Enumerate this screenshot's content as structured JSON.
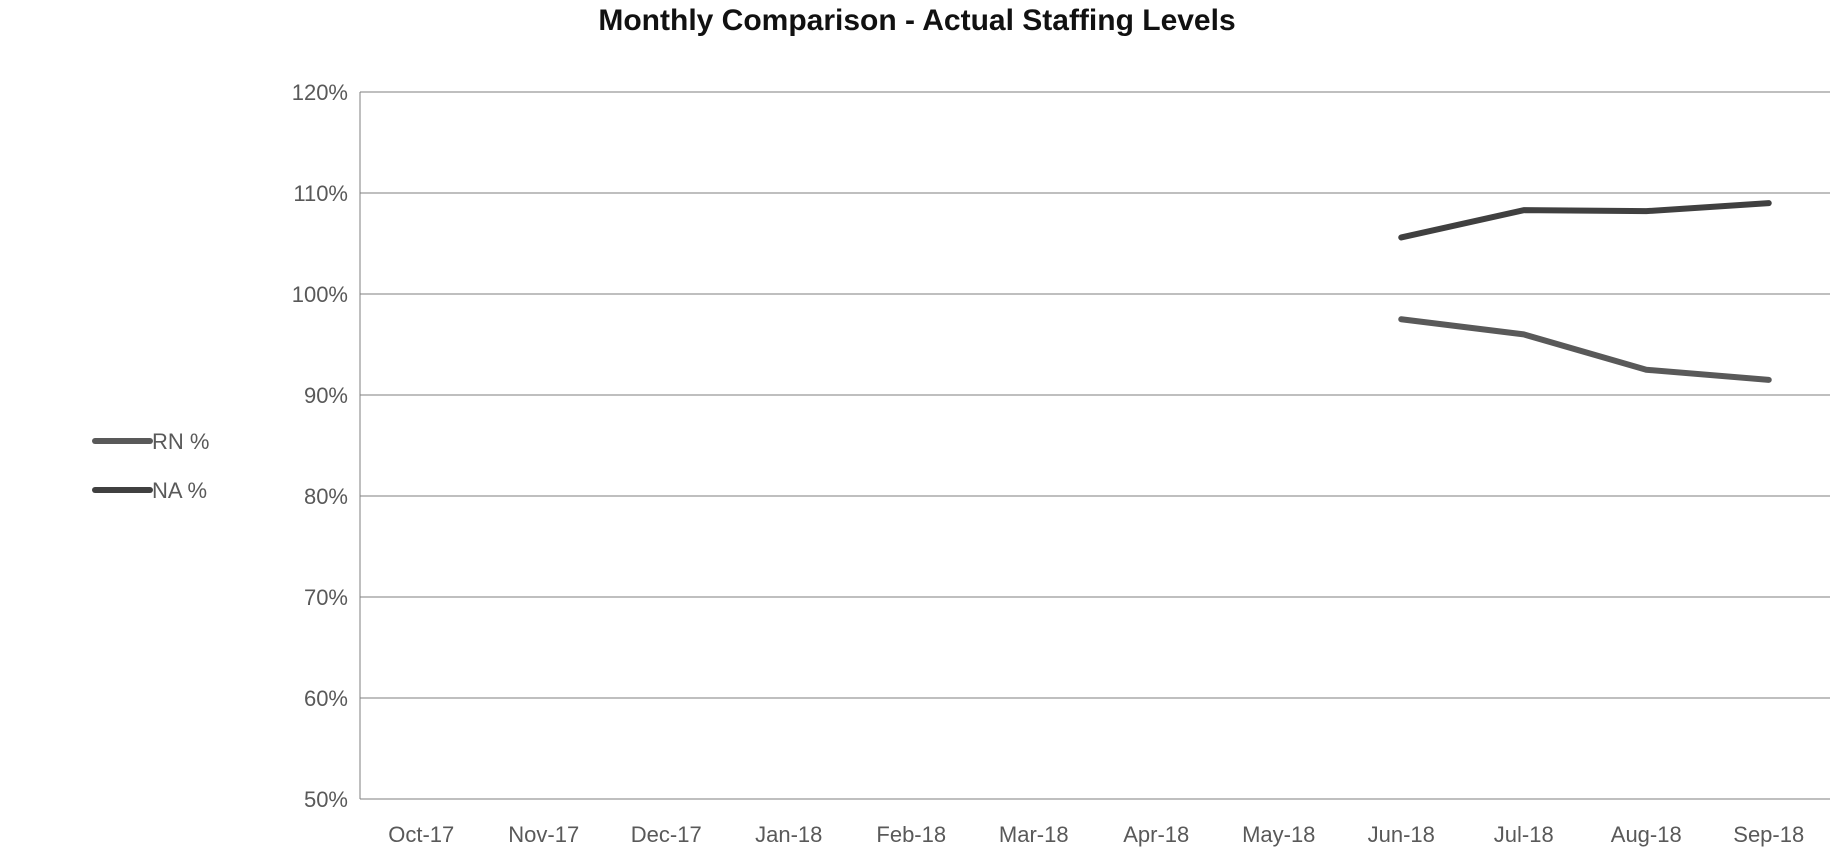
{
  "chart_data": {
    "type": "line",
    "title": "Monthly Comparison - Actual Staffing Levels",
    "xlabel": "",
    "ylabel": "",
    "ylim": [
      0.5,
      1.2
    ],
    "yticks": [
      "50%",
      "60%",
      "70%",
      "80%",
      "90%",
      "100%",
      "110%",
      "120%"
    ],
    "categories": [
      "Oct-17",
      "Nov-17",
      "Dec-17",
      "Jan-18",
      "Feb-18",
      "Mar-18",
      "Apr-18",
      "May-18",
      "Jun-18",
      "Jul-18",
      "Aug-18",
      "Sep-18"
    ],
    "series": [
      {
        "name": "RN %",
        "color": "#595959",
        "values": [
          null,
          null,
          null,
          null,
          null,
          null,
          null,
          null,
          0.975,
          0.96,
          0.925,
          0.915
        ]
      },
      {
        "name": "NA %",
        "color": "#404040",
        "values": [
          null,
          null,
          null,
          null,
          null,
          null,
          null,
          null,
          1.056,
          1.083,
          1.082,
          1.09
        ]
      }
    ],
    "legend_position": "left",
    "grid": true
  }
}
